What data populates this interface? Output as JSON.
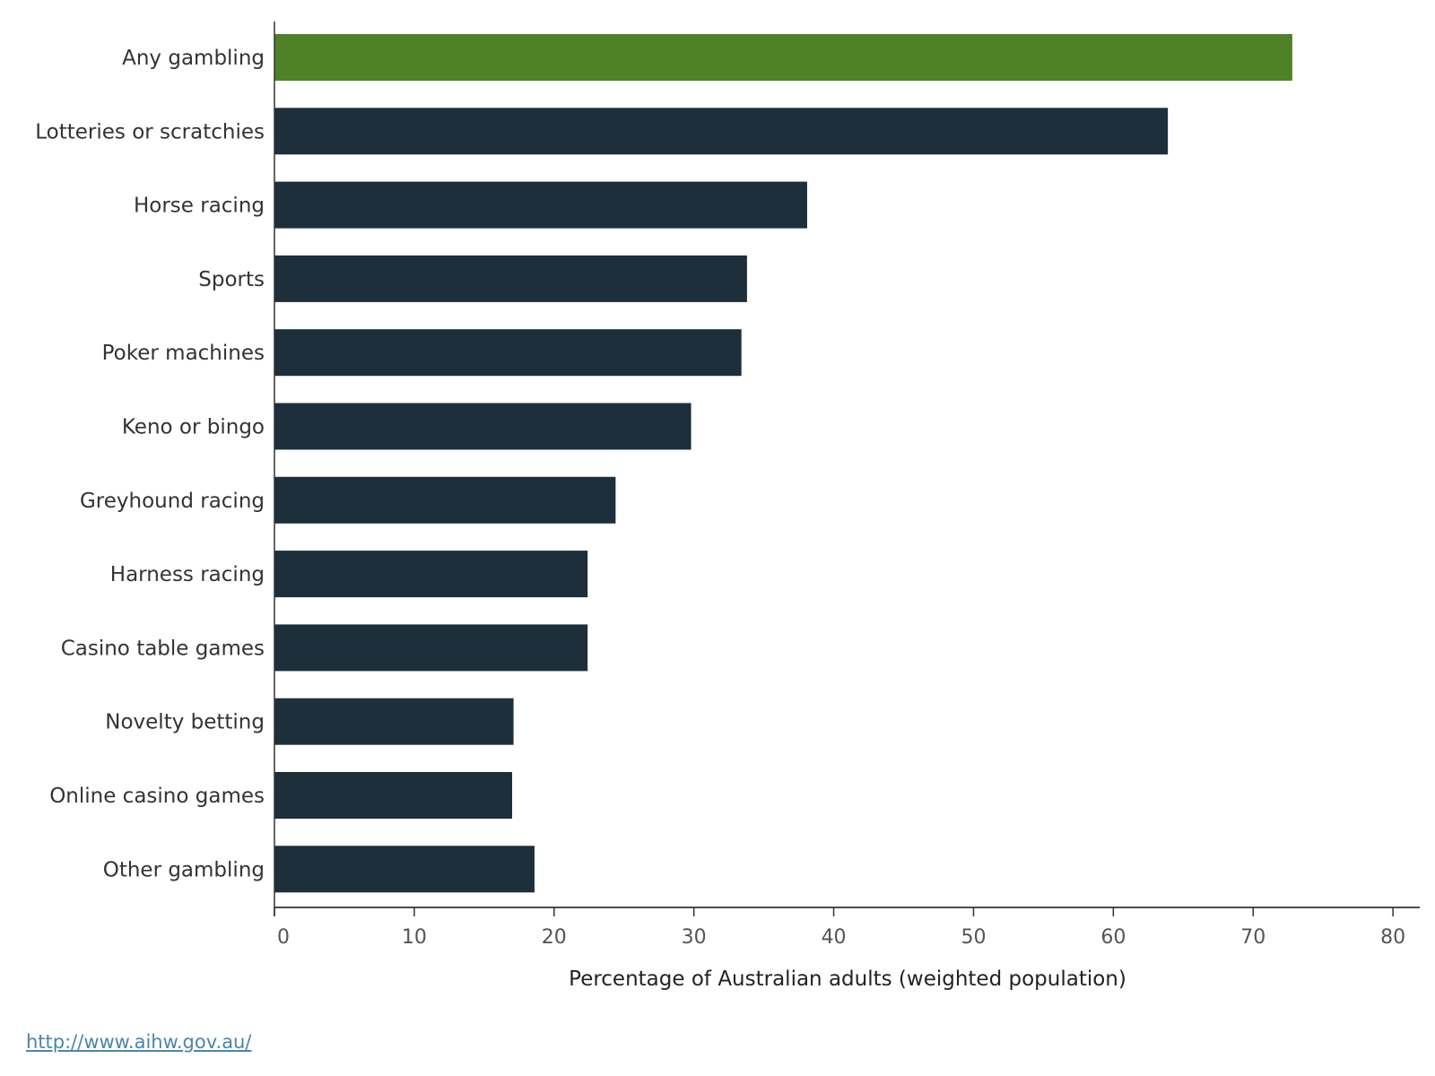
{
  "chart_data": {
    "type": "bar",
    "orientation": "horizontal",
    "title": "",
    "xlabel": "Percentage of Australian adults (weighted population)",
    "ylabel": "",
    "xlim": [
      0,
      80
    ],
    "xticks": [
      0,
      10,
      20,
      30,
      40,
      50,
      60,
      70,
      80
    ],
    "categories": [
      "Any gambling",
      "Lotteries or scratchies",
      "Horse racing",
      "Sports",
      "Poker machines",
      "Keno or bingo",
      "Greyhound racing",
      "Harness racing",
      "Casino table games",
      "Novelty betting",
      "Online casino games",
      "Other gambling"
    ],
    "values": [
      72.8,
      63.9,
      38.1,
      33.8,
      33.4,
      29.8,
      24.4,
      22.4,
      22.4,
      17.1,
      17.0,
      18.6
    ],
    "highlight_category": "Any gambling",
    "colors": {
      "highlight": "#4f8126",
      "default": "#1c2f3b",
      "axis": "#333333"
    },
    "grid": false
  },
  "source": {
    "link_text": "http://www.aihw.gov.au/"
  }
}
